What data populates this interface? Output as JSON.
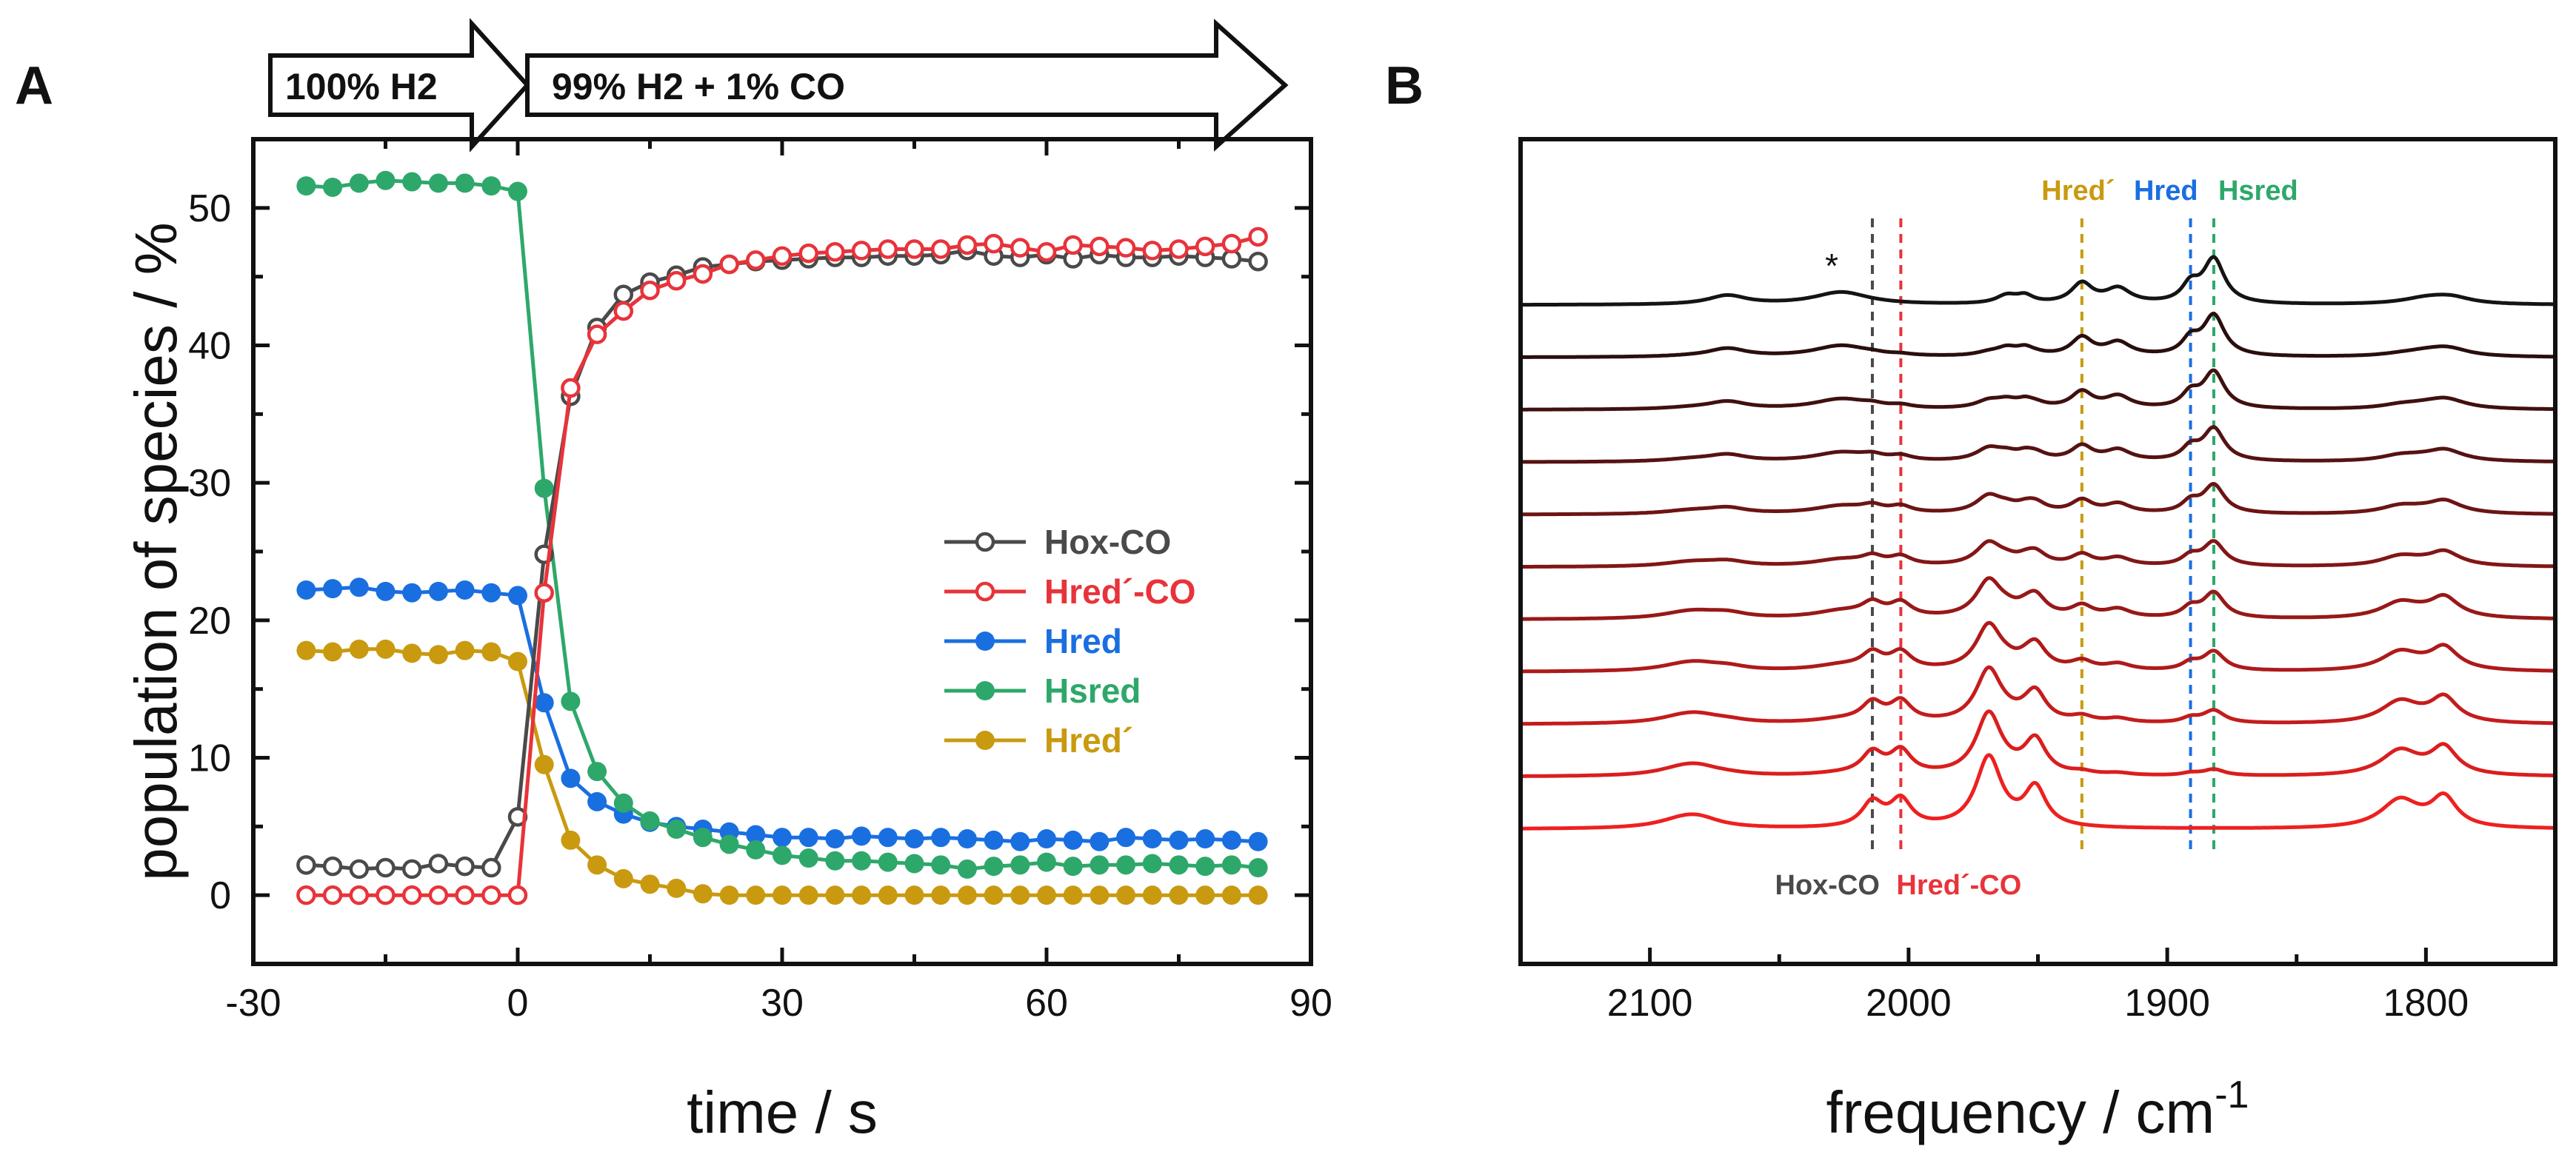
{
  "panels": {
    "a_letter": "A",
    "b_letter": "B"
  },
  "arrows": {
    "first": "100% H2",
    "second": "99% H2 + 1% CO"
  },
  "chart_data": [
    {
      "type": "scatter",
      "panel": "A",
      "xlabel": "time / s",
      "ylabel": "population of species / %",
      "xlim": [
        -30,
        90
      ],
      "ylim": [
        -5,
        55
      ],
      "xticks": [
        -30,
        0,
        30,
        60,
        90
      ],
      "yticks": [
        0,
        10,
        20,
        30,
        40,
        50
      ],
      "legend_position": "center-right",
      "x": [
        -24,
        -21,
        -18,
        -15,
        -12,
        -9,
        -6,
        -3,
        0,
        3,
        6,
        9,
        12,
        15,
        18,
        21,
        24,
        27,
        30,
        33,
        36,
        39,
        42,
        45,
        48,
        51,
        54,
        57,
        60,
        63,
        66,
        69,
        72,
        75,
        78,
        81,
        84
      ],
      "series": [
        {
          "name": "Hox-CO",
          "color": "#4a4a4a",
          "marker": "open",
          "values": [
            2.2,
            2.1,
            1.9,
            2.0,
            1.9,
            2.3,
            2.1,
            2.0,
            5.7,
            24.8,
            36.3,
            41.3,
            43.7,
            44.6,
            45.1,
            45.7,
            45.9,
            46.1,
            46.2,
            46.3,
            46.4,
            46.4,
            46.5,
            46.5,
            46.6,
            46.9,
            46.5,
            46.4,
            46.6,
            46.3,
            46.6,
            46.4,
            46.4,
            46.5,
            46.4,
            46.3,
            46.1
          ]
        },
        {
          "name": "Hred´-CO",
          "color": "#e8333a",
          "marker": "open",
          "values": [
            0,
            0,
            0,
            0,
            0,
            0,
            0,
            0,
            0,
            22.0,
            36.9,
            40.8,
            42.5,
            44.0,
            44.7,
            45.2,
            45.9,
            46.2,
            46.5,
            46.7,
            46.8,
            46.9,
            47.0,
            47.0,
            47.0,
            47.3,
            47.4,
            47.1,
            46.8,
            47.3,
            47.2,
            47.1,
            46.9,
            47.0,
            47.2,
            47.4,
            47.9
          ]
        },
        {
          "name": "Hred",
          "color": "#1a6fe0",
          "marker": "filled",
          "values": [
            22.2,
            22.3,
            22.4,
            22.1,
            22.0,
            22.1,
            22.2,
            22.0,
            21.8,
            14.0,
            8.5,
            6.8,
            5.9,
            5.3,
            5.0,
            4.8,
            4.6,
            4.4,
            4.2,
            4.2,
            4.1,
            4.3,
            4.2,
            4.1,
            4.2,
            4.1,
            4.0,
            3.9,
            4.1,
            4.0,
            3.9,
            4.2,
            4.1,
            4.0,
            4.1,
            4.0,
            3.9
          ]
        },
        {
          "name": "Hsred",
          "color": "#2ea86a",
          "marker": "filled",
          "values": [
            51.6,
            51.5,
            51.8,
            52.0,
            51.9,
            51.8,
            51.8,
            51.6,
            51.2,
            29.6,
            14.1,
            9.0,
            6.7,
            5.4,
            4.8,
            4.2,
            3.7,
            3.3,
            2.9,
            2.7,
            2.5,
            2.5,
            2.4,
            2.3,
            2.2,
            1.9,
            2.1,
            2.2,
            2.4,
            2.1,
            2.2,
            2.2,
            2.3,
            2.2,
            2.1,
            2.2,
            2.0
          ]
        },
        {
          "name": "Hred´",
          "color": "#c99a10",
          "marker": "filled",
          "values": [
            17.8,
            17.7,
            17.9,
            17.9,
            17.6,
            17.5,
            17.8,
            17.7,
            17.0,
            9.5,
            4.0,
            2.2,
            1.2,
            0.8,
            0.5,
            0.1,
            0.0,
            0.0,
            0.0,
            0.0,
            0.0,
            0.0,
            0.0,
            0.0,
            0.0,
            0.0,
            0.0,
            0.0,
            0.0,
            0.0,
            0.0,
            0.0,
            0.0,
            0.0,
            0.0,
            0.0,
            0.0
          ]
        }
      ]
    },
    {
      "type": "line",
      "panel": "B",
      "xlabel": "frequency / cm",
      "xlabel_superscript": "-1",
      "xlim": [
        2150,
        1750
      ],
      "xticks": [
        2100,
        2000,
        1900,
        1800
      ],
      "y_ticks_shown": false,
      "n_spectra": 11,
      "spectra_colors": [
        "#141414",
        "#2a0e0e",
        "#401010",
        "#561212",
        "#6c1414",
        "#821616",
        "#981818",
        "#ae1a1a",
        "#c41c1c",
        "#da1e1e",
        "#ee2020"
      ],
      "asterisk": {
        "label": "*",
        "x": 2028
      },
      "reference_lines": [
        {
          "name": "Hox-CO",
          "x": 2014,
          "color": "#4a4a4a"
        },
        {
          "name": "Hred´-CO",
          "x": 2003,
          "color": "#e8333a"
        },
        {
          "name": "Hred´",
          "x": 1933,
          "color": "#c99a10"
        },
        {
          "name": "Hred",
          "x": 1891,
          "color": "#1a6fe0"
        },
        {
          "name": "Hsred",
          "x": 1882,
          "color": "#2ea86a"
        }
      ],
      "peak_groups": {
        "co_bound": [
          2087,
          2081,
          2014,
          2003,
          1969,
          1951,
          1810,
          1793
        ],
        "hsred": [
          2070,
          2026,
          1962,
          1955,
          1933,
          1919,
          1891,
          1882,
          1799,
          1790
        ]
      }
    }
  ]
}
